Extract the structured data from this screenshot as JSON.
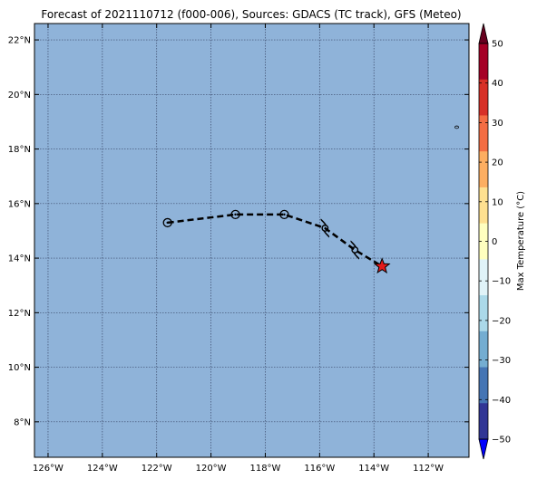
{
  "title": "Forecast of 2021110712 (f000-006), Sources: GDACS (TC track), GFS (Meteo)",
  "colors": {
    "ocean": "#8fb3d9",
    "grid": "#3b4a6b",
    "track": "#000000",
    "current_marker": "#e31a1c"
  },
  "chart_data": {
    "type": "map",
    "lon_range": [
      -126.5,
      -110.5
    ],
    "lat_range": [
      6.7,
      22.6
    ],
    "lon_ticks": [
      {
        "value": -126,
        "label": "126°W"
      },
      {
        "value": -124,
        "label": "124°W"
      },
      {
        "value": -122,
        "label": "122°W"
      },
      {
        "value": -120,
        "label": "120°W"
      },
      {
        "value": -118,
        "label": "118°W"
      },
      {
        "value": -116,
        "label": "116°W"
      },
      {
        "value": -114,
        "label": "114°W"
      },
      {
        "value": -112,
        "label": "112°W"
      }
    ],
    "lat_ticks": [
      {
        "value": 8,
        "label": "8°N"
      },
      {
        "value": 10,
        "label": "10°N"
      },
      {
        "value": 12,
        "label": "12°N"
      },
      {
        "value": 14,
        "label": "14°N"
      },
      {
        "value": 16,
        "label": "16°N"
      },
      {
        "value": 18,
        "label": "18°N"
      },
      {
        "value": 20,
        "label": "20°N"
      },
      {
        "value": 22,
        "label": "22°N"
      }
    ],
    "track": [
      {
        "lon": -121.6,
        "lat": 15.3,
        "symbol": "low"
      },
      {
        "lon": -119.1,
        "lat": 15.6,
        "symbol": "low"
      },
      {
        "lon": -117.3,
        "lat": 15.6,
        "symbol": "low"
      },
      {
        "lon": -115.8,
        "lat": 15.1,
        "symbol": "storm"
      },
      {
        "lon": -114.7,
        "lat": 14.3,
        "symbol": "storm"
      },
      {
        "lon": -113.7,
        "lat": 13.7,
        "symbol": "current"
      }
    ],
    "islands": [
      {
        "lon": -110.95,
        "lat": 18.8
      }
    ],
    "colorbar": {
      "label": "Max Temperature (°C)",
      "ticks": [
        50,
        40,
        30,
        20,
        10,
        0,
        -10,
        -20,
        -30,
        -40,
        -50
      ],
      "tick_labels": [
        "50",
        "40",
        "30",
        "20",
        "10",
        "0",
        "−10",
        "−20",
        "−30",
        "−40",
        "−50"
      ],
      "colors": [
        "#a50026",
        "#d73027",
        "#f46d43",
        "#fdae61",
        "#fee090",
        "#ffffbf",
        "#e0f3f8",
        "#abd9e9",
        "#74add1",
        "#4575b4",
        "#313695"
      ],
      "extend_top": "#67001f",
      "extend_bottom": "#0000ff"
    }
  }
}
